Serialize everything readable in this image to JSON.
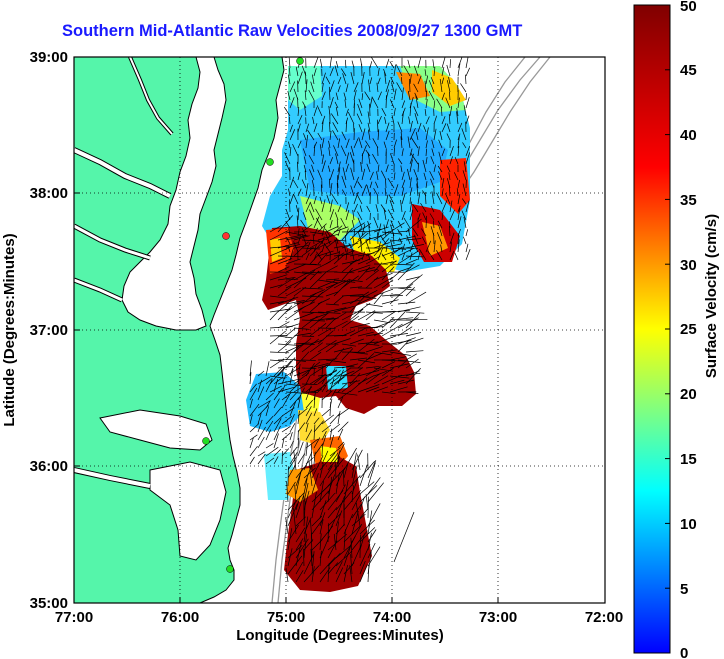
{
  "title": "Southern Mid-Atlantic Raw Velocities 2008/09/27 1300 GMT",
  "axes": {
    "xlabel": "Longitude (Degrees:Minutes)",
    "ylabel": "Latitude (Degrees:Minutes)",
    "xticks": [
      "77:00",
      "76:00",
      "75:00",
      "74:00",
      "73:00",
      "72:00"
    ],
    "yticks": [
      "39:00",
      "38:00",
      "37:00",
      "36:00",
      "35:00"
    ]
  },
  "colorbar": {
    "label": "Surface Velocity (cm/s)",
    "ticks": [
      "50",
      "45",
      "40",
      "35",
      "30",
      "25",
      "20",
      "15",
      "10",
      "5",
      "0"
    ],
    "range": [
      0,
      50
    ]
  },
  "colors": {
    "land": "#55f5aa",
    "title": "#1a1aff",
    "coastline": "#000000",
    "bathymetry": "#999999",
    "station_active": "#22dd22",
    "station_inactive": "#ff3333"
  },
  "chart_data": {
    "type": "heatmap",
    "extent": {
      "lon": [
        -77,
        -72
      ],
      "lat": [
        35,
        39
      ]
    },
    "grid": true,
    "stations": [
      {
        "lon": -74.87,
        "lat": 38.94,
        "status": "active"
      },
      {
        "lon": -75.15,
        "lat": 38.22,
        "status": "active"
      },
      {
        "lon": -75.53,
        "lat": 37.7,
        "status": "inactive"
      },
      {
        "lon": -75.73,
        "lat": 36.2,
        "status": "active"
      },
      {
        "lon": -75.52,
        "lat": 35.25,
        "status": "active"
      }
    ]
  }
}
